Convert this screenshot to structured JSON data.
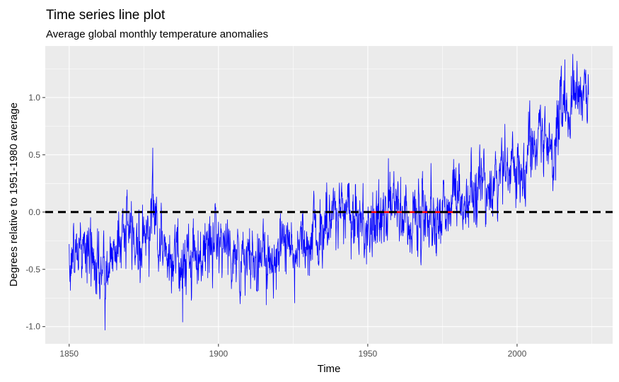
{
  "chart_data": {
    "type": "line",
    "title": "Time series line plot",
    "subtitle": "Average global monthly temperature anomalies",
    "xlabel": "Time",
    "ylabel": "Degrees relative to 1951-1980 average",
    "xlim": [
      1842,
      2032
    ],
    "ylim": [
      -1.15,
      1.45
    ],
    "x_ticks": [
      1850,
      1900,
      1950,
      2000
    ],
    "x_minor_ticks": [
      1875,
      1925,
      1975,
      2025
    ],
    "x_tick_labels": [
      "1850",
      "1900",
      "1950",
      "2000"
    ],
    "y_ticks": [
      -1.0,
      -0.5,
      0.0,
      0.5,
      1.0
    ],
    "y_minor_ticks": [
      -0.75,
      -0.25,
      0.25,
      0.75,
      1.25
    ],
    "y_tick_labels": [
      "-1.0",
      "-0.5",
      "0.0",
      "0.5",
      "1.0"
    ],
    "grid": true,
    "legend": "none",
    "colors": {
      "panel_background": "#ebebeb",
      "grid": "#ffffff",
      "series": "#0000ff",
      "baseline_period": "#ff0000",
      "reference_line": "#000000"
    },
    "series": [
      {
        "style": "monthly",
        "anchors": [
          [
            1850,
            -0.4
          ],
          [
            1855,
            -0.3
          ],
          [
            1860,
            -0.5
          ],
          [
            1862,
            -0.6
          ],
          [
            1865,
            -0.3
          ],
          [
            1868,
            -0.2
          ],
          [
            1870,
            -0.15
          ],
          [
            1874,
            -0.3
          ],
          [
            1877,
            -0.1
          ],
          [
            1878,
            0.15
          ],
          [
            1880,
            -0.25
          ],
          [
            1885,
            -0.4
          ],
          [
            1888,
            -0.45
          ],
          [
            1890,
            -0.4
          ],
          [
            1893,
            -0.35
          ],
          [
            1898,
            -0.3
          ],
          [
            1900,
            -0.15
          ],
          [
            1903,
            -0.3
          ],
          [
            1905,
            -0.35
          ],
          [
            1909,
            -0.5
          ],
          [
            1911,
            -0.45
          ],
          [
            1913,
            -0.4
          ],
          [
            1915,
            -0.25
          ],
          [
            1918,
            -0.4
          ],
          [
            1920,
            -0.35
          ],
          [
            1925,
            -0.3
          ],
          [
            1930,
            -0.2
          ],
          [
            1935,
            -0.2
          ],
          [
            1938,
            -0.05
          ],
          [
            1940,
            0.0
          ],
          [
            1942,
            0.0
          ],
          [
            1944,
            0.1
          ],
          [
            1946,
            -0.05
          ],
          [
            1950,
            -0.15
          ],
          [
            1955,
            -0.05
          ],
          [
            1958,
            0.05
          ],
          [
            1960,
            0.0
          ],
          [
            1965,
            -0.05
          ],
          [
            1970,
            0.0
          ],
          [
            1975,
            -0.05
          ],
          [
            1977,
            0.1
          ],
          [
            1980,
            0.15
          ],
          [
            1985,
            0.1
          ],
          [
            1988,
            0.25
          ],
          [
            1990,
            0.3
          ],
          [
            1992,
            0.2
          ],
          [
            1995,
            0.3
          ],
          [
            1998,
            0.45
          ],
          [
            2000,
            0.35
          ],
          [
            2005,
            0.55
          ],
          [
            2010,
            0.6
          ],
          [
            2012,
            0.55
          ],
          [
            2014,
            0.65
          ],
          [
            2016,
            1.0
          ],
          [
            2018,
            0.85
          ],
          [
            2020,
            1.0
          ],
          [
            2023,
            1.0
          ]
        ],
        "peaks": [
          [
            1862,
            -1.03
          ],
          [
            1878,
            0.56
          ],
          [
            1888,
            -0.96
          ],
          [
            1916,
            -0.81
          ],
          [
            2016,
            1.33
          ],
          [
            2020,
            1.23
          ],
          [
            2023,
            1.24
          ]
        ],
        "noise_sd": 0.13
      },
      {
        "style": "baseline_period",
        "x": [
          1951,
          1980
        ],
        "y": [
          0.0,
          0.0
        ]
      }
    ],
    "reference_line": {
      "y": 0.0,
      "style": "dashed"
    }
  }
}
